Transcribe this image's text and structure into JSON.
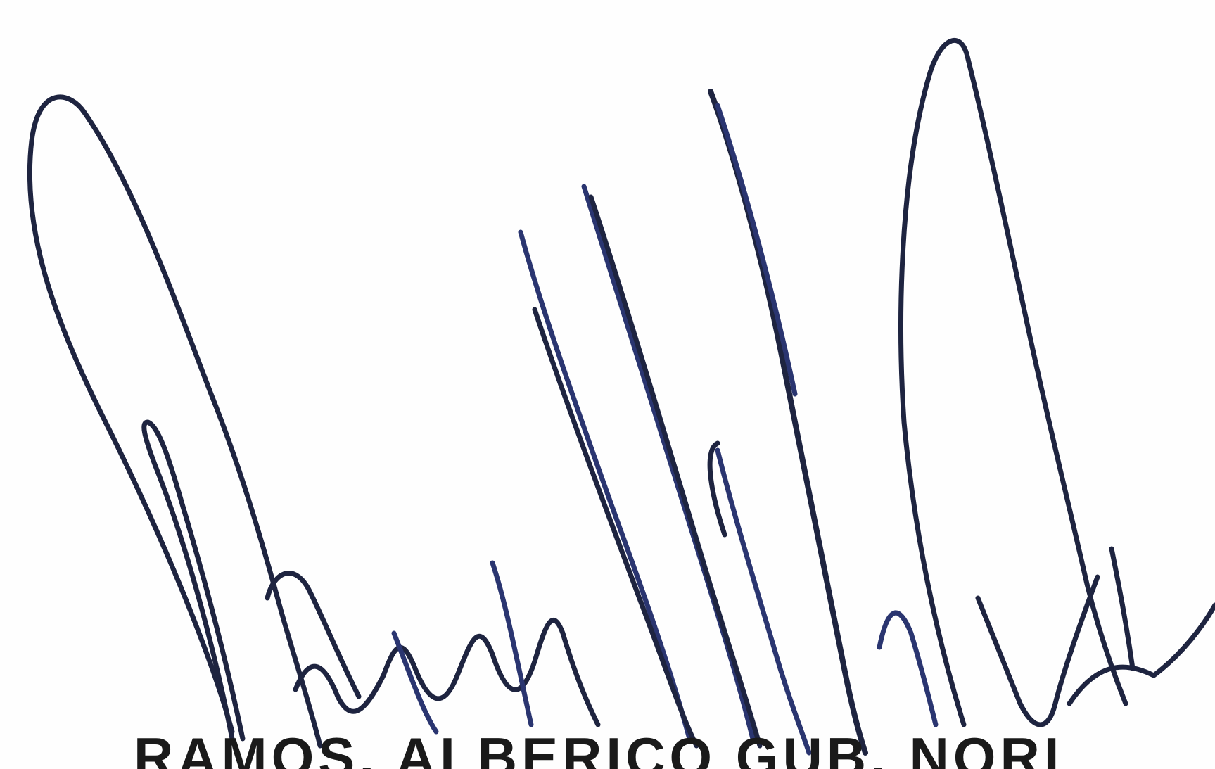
{
  "signature": {
    "ink_color": "#1e2440",
    "ink_color_secondary": "#2a3570",
    "printed_name": "RAMOS, ALBERICO GUB. NORI"
  }
}
